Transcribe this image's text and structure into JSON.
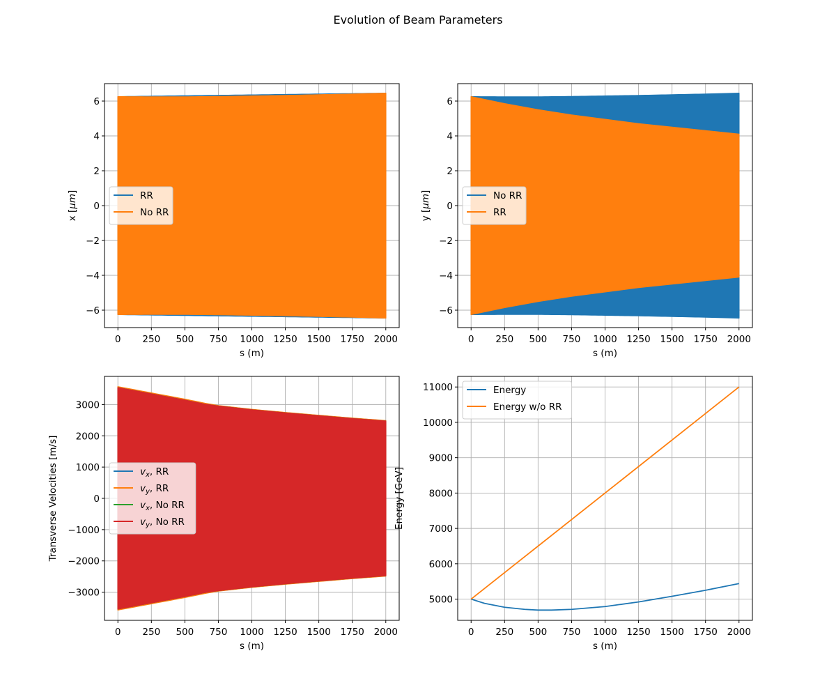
{
  "figure": {
    "suptitle": "Evolution of Beam Parameters"
  },
  "chart_data": [
    {
      "type": "line",
      "title": "",
      "xlabel": "s (m)",
      "ylabel": "x [$\\mu m$]",
      "ylabel_parts": [
        "x [",
        "μm",
        "]"
      ],
      "xlim": [
        -100,
        2100
      ],
      "ylim": [
        -7,
        7
      ],
      "xticks": [
        0,
        250,
        500,
        750,
        1000,
        1250,
        1500,
        1750,
        2000
      ],
      "yticks": [
        -6,
        -4,
        -2,
        0,
        2,
        4,
        6
      ],
      "grid": true,
      "legend_position": "center-left",
      "series": [
        {
          "name": "RR",
          "color": "#1f77b4",
          "style": "dense-oscillation",
          "x": [
            0,
            2000
          ],
          "upper": [
            6.25,
            6.45
          ],
          "lower": [
            -6.25,
            -6.45
          ]
        },
        {
          "name": "No RR",
          "color": "#ff7f0e",
          "style": "dense-oscillation",
          "x": [
            0,
            250,
            500,
            750,
            1000,
            1250,
            1500,
            1750,
            2000
          ],
          "upper": [
            6.25,
            6.24,
            6.24,
            6.26,
            6.29,
            6.32,
            6.36,
            6.4,
            6.45
          ],
          "lower": [
            -6.25,
            -6.24,
            -6.24,
            -6.26,
            -6.29,
            -6.32,
            -6.36,
            -6.4,
            -6.45
          ]
        }
      ],
      "legend": [
        {
          "label": "RR",
          "sub": "",
          "tail": "",
          "color": "#1f77b4"
        },
        {
          "label": "No RR",
          "sub": "",
          "tail": "",
          "color": "#ff7f0e"
        }
      ]
    },
    {
      "type": "line",
      "title": "",
      "xlabel": "s (m)",
      "ylabel": "y [$\\mu m$]",
      "ylabel_parts": [
        "y [",
        "μm",
        "]"
      ],
      "xlim": [
        -100,
        2100
      ],
      "ylim": [
        -7,
        7
      ],
      "xticks": [
        0,
        250,
        500,
        750,
        1000,
        1250,
        1500,
        1750,
        2000
      ],
      "yticks": [
        -6,
        -4,
        -2,
        0,
        2,
        4,
        6
      ],
      "grid": true,
      "legend_position": "center-left",
      "series": [
        {
          "name": "No RR",
          "color": "#1f77b4",
          "style": "dense-oscillation",
          "x": [
            0,
            250,
            500,
            750,
            1000,
            1250,
            1500,
            1750,
            2000
          ],
          "upper": [
            6.25,
            6.24,
            6.24,
            6.26,
            6.29,
            6.32,
            6.36,
            6.4,
            6.45
          ],
          "lower": [
            -6.25,
            -6.24,
            -6.24,
            -6.26,
            -6.29,
            -6.32,
            -6.36,
            -6.4,
            -6.45
          ]
        },
        {
          "name": "RR",
          "color": "#ff7f0e",
          "style": "dense-oscillation",
          "x": [
            0,
            250,
            500,
            750,
            1000,
            1250,
            1500,
            1750,
            2000
          ],
          "upper": [
            6.25,
            5.85,
            5.5,
            5.2,
            4.95,
            4.7,
            4.5,
            4.3,
            4.1
          ],
          "lower": [
            -6.25,
            -5.85,
            -5.5,
            -5.2,
            -4.95,
            -4.7,
            -4.5,
            -4.3,
            -4.1
          ]
        }
      ],
      "legend": [
        {
          "label": "No RR",
          "sub": "",
          "tail": "",
          "color": "#1f77b4"
        },
        {
          "label": "RR",
          "sub": "",
          "tail": "",
          "color": "#ff7f0e"
        }
      ]
    },
    {
      "type": "line",
      "title": "",
      "xlabel": "s (m)",
      "ylabel": "Transverse Velocities [m/s]",
      "xlim": [
        -100,
        2100
      ],
      "ylim": [
        -3900,
        3900
      ],
      "xticks": [
        0,
        250,
        500,
        750,
        1000,
        1250,
        1500,
        1750,
        2000
      ],
      "yticks": [
        -3000,
        -2000,
        -1000,
        0,
        1000,
        2000,
        3000
      ],
      "grid": true,
      "legend_position": "center-left",
      "series": [
        {
          "name": "v_x, RR",
          "color": "#1f77b4",
          "style": "dense-oscillation",
          "x": [
            0,
            250,
            500,
            650,
            750,
            1000,
            1250,
            1500,
            1750,
            2000
          ],
          "upper": [
            3560,
            3360,
            3160,
            3030,
            2960,
            2840,
            2740,
            2650,
            2560,
            2480
          ],
          "lower": [
            -3560,
            -3360,
            -3160,
            -3030,
            -2960,
            -2840,
            -2740,
            -2650,
            -2560,
            -2480
          ]
        },
        {
          "name": "v_y, RR",
          "color": "#ff7f0e",
          "style": "dense-oscillation",
          "x": [
            0,
            250,
            500,
            650,
            750,
            1000,
            1250,
            1500,
            1750,
            2000
          ],
          "upper": [
            3570,
            3370,
            3170,
            3040,
            2965,
            2845,
            2745,
            2655,
            2565,
            2485
          ],
          "lower": [
            -3570,
            -3370,
            -3170,
            -3040,
            -2965,
            -2845,
            -2745,
            -2655,
            -2565,
            -2485
          ]
        },
        {
          "name": "v_x, No RR",
          "color": "#2ca02c",
          "style": "dense-oscillation",
          "x": [
            0,
            250,
            500,
            650,
            750,
            1000,
            1250,
            1500,
            1750,
            2000
          ],
          "upper": [
            3540,
            3340,
            3140,
            3010,
            2950,
            2830,
            2730,
            2640,
            2550,
            2470
          ],
          "lower": [
            -3540,
            -3340,
            -3140,
            -3010,
            -2950,
            -2830,
            -2730,
            -2640,
            -2550,
            -2470
          ]
        },
        {
          "name": "v_y, No RR",
          "color": "#d62728",
          "style": "dense-oscillation",
          "x": [
            0,
            250,
            500,
            650,
            750,
            1000,
            1250,
            1500,
            1750,
            2000
          ],
          "upper": [
            3540,
            3340,
            3140,
            3010,
            2950,
            2830,
            2730,
            2640,
            2550,
            2470
          ],
          "lower": [
            -3540,
            -3340,
            -3140,
            -3010,
            -2950,
            -2830,
            -2730,
            -2640,
            -2550,
            -2470
          ]
        }
      ],
      "legend": [
        {
          "label": "v",
          "sub": "x",
          "tail": ", RR",
          "color": "#1f77b4"
        },
        {
          "label": "v",
          "sub": "y",
          "tail": ", RR",
          "color": "#ff7f0e"
        },
        {
          "label": "v",
          "sub": "x",
          "tail": ", No RR",
          "color": "#2ca02c"
        },
        {
          "label": "v",
          "sub": "y",
          "tail": ", No RR",
          "color": "#d62728"
        }
      ]
    },
    {
      "type": "line",
      "title": "",
      "xlabel": "s (m)",
      "ylabel": "Energy [GeV]",
      "xlim": [
        -100,
        2100
      ],
      "ylim": [
        4400,
        11300
      ],
      "xticks": [
        0,
        250,
        500,
        750,
        1000,
        1250,
        1500,
        1750,
        2000
      ],
      "yticks": [
        5000,
        6000,
        7000,
        8000,
        9000,
        10000,
        11000
      ],
      "grid": true,
      "legend_position": "upper-left",
      "series": [
        {
          "name": "Energy",
          "color": "#1f77b4",
          "style": "line",
          "x": [
            0,
            100,
            250,
            400,
            500,
            600,
            750,
            1000,
            1250,
            1500,
            1750,
            2000
          ],
          "y": [
            5000,
            4880,
            4770,
            4710,
            4690,
            4690,
            4710,
            4790,
            4920,
            5080,
            5250,
            5440
          ]
        },
        {
          "name": "Energy w/o RR",
          "color": "#ff7f0e",
          "style": "line",
          "x": [
            0,
            2000
          ],
          "y": [
            5000,
            11000
          ]
        }
      ],
      "legend": [
        {
          "label": "Energy",
          "sub": "",
          "tail": "",
          "color": "#1f77b4"
        },
        {
          "label": "Energy w/o RR",
          "sub": "",
          "tail": "",
          "color": "#ff7f0e"
        }
      ]
    }
  ]
}
